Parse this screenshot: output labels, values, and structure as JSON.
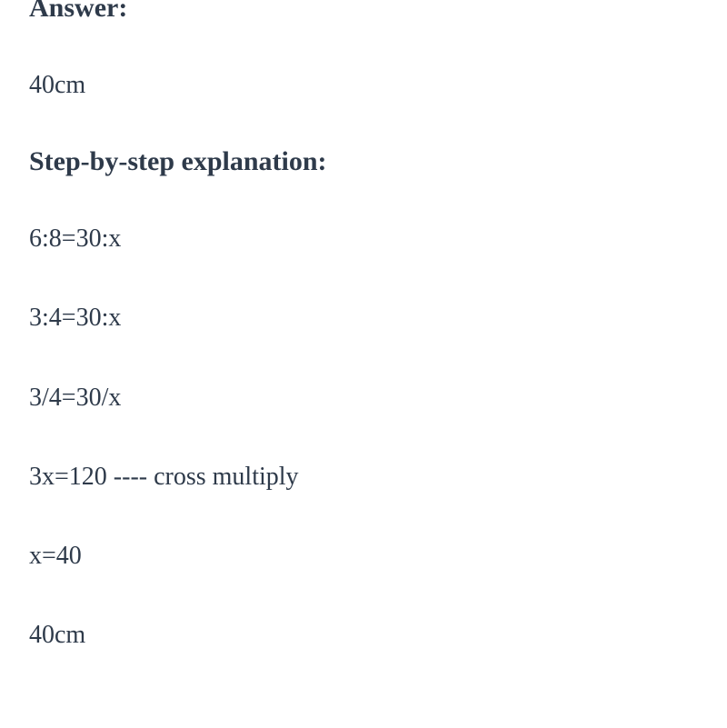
{
  "document": {
    "text_color": "#2e3a4a",
    "background_color": "#ffffff",
    "heading_fontsize": 30,
    "body_fontsize": 28,
    "font_family": "Georgia, serif",
    "headings": {
      "answer": "Answer:",
      "explanation": "Step-by-step explanation:"
    },
    "answer_value": "40cm",
    "steps": [
      "6:8=30:x",
      "3:4=30:x",
      "3/4=30/x",
      "3x=120 ---- cross multiply",
      "x=40",
      "40cm"
    ]
  }
}
